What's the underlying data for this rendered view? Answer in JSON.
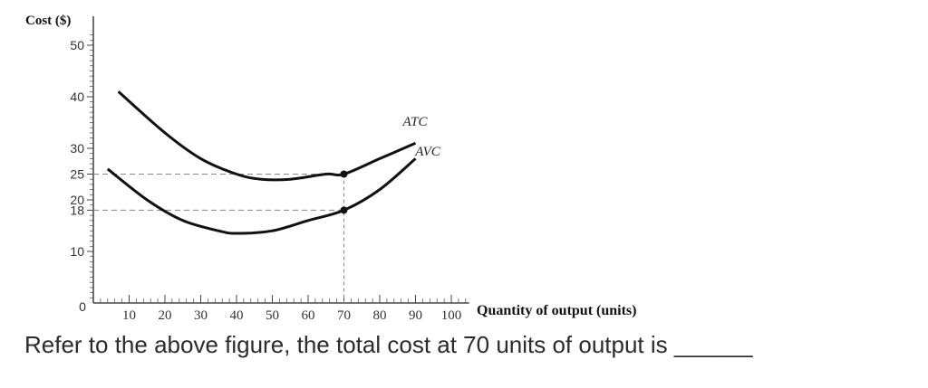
{
  "chart_data": {
    "type": "line",
    "ylabel": "Cost ($)",
    "xlabel": "Quantity of output (units)",
    "origin_label": "0",
    "x_ticks": [
      10,
      20,
      30,
      40,
      50,
      60,
      70,
      80,
      90,
      100
    ],
    "x_tick_labels": [
      "10",
      "20",
      "30",
      "40",
      "50",
      "60",
      "70",
      "80",
      "90",
      "100"
    ],
    "y_ticks": [
      10,
      18,
      20,
      25,
      30,
      40,
      50
    ],
    "y_tick_labels": [
      "10",
      "18",
      "20",
      "25",
      "30",
      "40",
      "50"
    ],
    "xlim": [
      0,
      105
    ],
    "ylim": [
      0,
      55
    ],
    "grid": false,
    "series": [
      {
        "name": "ATC",
        "x": [
          7,
          20,
          30,
          40,
          47,
          55,
          65,
          70,
          80,
          90
        ],
        "y": [
          41,
          33,
          28,
          25,
          24,
          24,
          25,
          25,
          28,
          31
        ]
      },
      {
        "name": "AVC",
        "x": [
          4,
          15,
          25,
          35,
          40,
          50,
          60,
          70,
          80,
          90
        ],
        "y": [
          26,
          20,
          16,
          14,
          13.5,
          14,
          16,
          18,
          22,
          28
        ]
      }
    ],
    "marked_points": [
      {
        "x": 70,
        "y": 25
      },
      {
        "x": 70,
        "y": 18
      }
    ],
    "reference_lines": {
      "x_value": 70,
      "y_values": [
        25,
        18
      ]
    }
  },
  "question": {
    "text": "Refer to the above figure, the total cost at 70 units of output is ______"
  }
}
